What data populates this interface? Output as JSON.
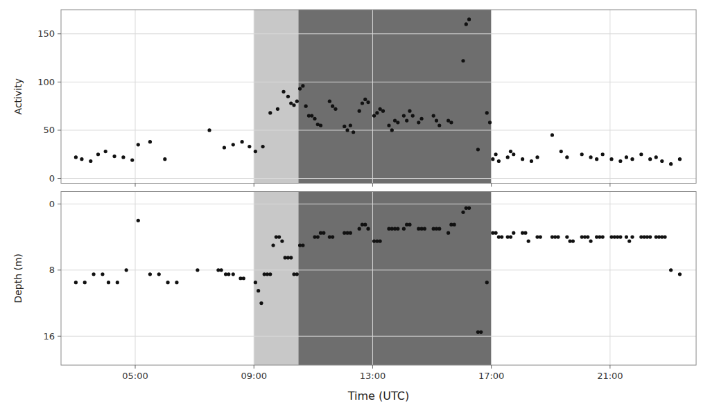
{
  "chart_data": [
    {
      "type": "scatter",
      "ylabel": "Activity",
      "xlim": [
        2.5,
        23.9
      ],
      "xticks": [
        5,
        9,
        13,
        17,
        21
      ],
      "ylim": [
        -5,
        175
      ],
      "yticks": [
        0,
        50,
        100,
        150
      ],
      "grid": true,
      "tick_labels": "y",
      "color": "#111111",
      "bands": [
        {
          "start": 9.0,
          "end": 10.5,
          "color": "#c8c8c8"
        },
        {
          "start": 10.5,
          "end": 17.0,
          "color": "#6e6e6e"
        }
      ],
      "x": [
        3.0,
        3.2,
        3.5,
        3.75,
        4.0,
        4.3,
        4.6,
        4.9,
        5.1,
        5.5,
        6.0,
        7.5,
        8.0,
        8.3,
        8.6,
        8.85,
        9.05,
        9.3,
        9.55,
        9.8,
        10.0,
        10.15,
        10.25,
        10.35,
        10.45,
        10.55,
        10.65,
        10.75,
        10.85,
        10.95,
        11.05,
        11.15,
        11.25,
        11.55,
        11.65,
        11.75,
        12.05,
        12.15,
        12.25,
        12.35,
        12.55,
        12.65,
        12.75,
        12.85,
        13.05,
        13.15,
        13.25,
        13.35,
        13.55,
        13.65,
        13.75,
        13.85,
        14.05,
        14.15,
        14.25,
        14.35,
        14.55,
        14.65,
        15.05,
        15.15,
        15.25,
        15.55,
        15.65,
        16.05,
        16.15,
        16.25,
        16.55,
        16.85,
        16.95,
        17.05,
        17.15,
        17.25,
        17.55,
        17.65,
        17.75,
        18.05,
        18.35,
        18.55,
        19.05,
        19.35,
        19.55,
        20.05,
        20.35,
        20.55,
        20.75,
        21.05,
        21.35,
        21.55,
        21.75,
        22.05,
        22.35,
        22.55,
        22.75,
        23.05,
        23.35
      ],
      "values": [
        22,
        20,
        18,
        25,
        28,
        23,
        22,
        19,
        35,
        38,
        20,
        50,
        32,
        35,
        38,
        33,
        28,
        33,
        68,
        72,
        90,
        85,
        78,
        76,
        80,
        93,
        96,
        75,
        65,
        65,
        62,
        56,
        55,
        80,
        75,
        72,
        54,
        50,
        55,
        48,
        70,
        78,
        82,
        79,
        65,
        68,
        72,
        70,
        55,
        50,
        60,
        58,
        65,
        60,
        70,
        65,
        58,
        62,
        65,
        60,
        55,
        60,
        58,
        122,
        160,
        165,
        30,
        68,
        58,
        20,
        25,
        18,
        22,
        28,
        25,
        20,
        18,
        22,
        45,
        28,
        22,
        25,
        22,
        20,
        25,
        20,
        18,
        22,
        20,
        25,
        20,
        22,
        18,
        15,
        20
      ]
    },
    {
      "type": "scatter",
      "xlabel": "Time (UTC)",
      "ylabel": "Depth (m)",
      "xlim": [
        2.5,
        23.9
      ],
      "xticks": [
        {
          "value": 5,
          "label": "05:00"
        },
        {
          "value": 9,
          "label": "09:00"
        },
        {
          "value": 13,
          "label": "13:00"
        },
        {
          "value": 17,
          "label": "17:00"
        },
        {
          "value": 21,
          "label": "21:00"
        }
      ],
      "ylim": [
        19.5,
        -1.5
      ],
      "yticks": [
        0,
        8,
        16
      ],
      "grid": true,
      "color": "#111111",
      "bands": [
        {
          "start": 9.0,
          "end": 10.5,
          "color": "#c8c8c8"
        },
        {
          "start": 10.5,
          "end": 17.0,
          "color": "#6e6e6e"
        }
      ],
      "x": [
        3.0,
        3.3,
        3.6,
        3.9,
        4.1,
        4.4,
        4.7,
        5.1,
        5.5,
        5.8,
        6.1,
        6.4,
        7.1,
        7.8,
        7.9,
        8.05,
        8.15,
        8.3,
        8.55,
        8.65,
        9.05,
        9.15,
        9.25,
        9.35,
        9.45,
        9.55,
        9.65,
        9.75,
        9.85,
        9.95,
        10.05,
        10.15,
        10.25,
        10.35,
        10.45,
        10.55,
        10.65,
        11.05,
        11.15,
        11.25,
        11.35,
        11.55,
        11.65,
        12.05,
        12.15,
        12.25,
        12.55,
        12.65,
        12.75,
        12.85,
        13.05,
        13.15,
        13.25,
        13.55,
        13.65,
        13.75,
        13.85,
        14.05,
        14.15,
        14.25,
        14.55,
        14.65,
        14.75,
        15.05,
        15.15,
        15.25,
        15.55,
        15.65,
        15.75,
        16.05,
        16.15,
        16.25,
        16.55,
        16.65,
        16.85,
        17.05,
        17.15,
        17.25,
        17.35,
        17.55,
        17.65,
        17.75,
        18.05,
        18.15,
        18.25,
        18.55,
        18.65,
        19.05,
        19.15,
        19.25,
        19.55,
        19.65,
        19.75,
        20.05,
        20.15,
        20.25,
        20.35,
        20.55,
        20.65,
        20.75,
        21.05,
        21.15,
        21.25,
        21.35,
        21.55,
        21.65,
        21.75,
        22.05,
        22.15,
        22.25,
        22.35,
        22.55,
        22.65,
        22.75,
        22.85,
        23.05,
        23.35
      ],
      "values": [
        9.5,
        9.5,
        8.5,
        8.5,
        9.5,
        9.5,
        8.0,
        2.0,
        8.5,
        8.5,
        9.5,
        9.5,
        8.0,
        8.0,
        8.0,
        8.5,
        8.5,
        8.5,
        9.0,
        9.0,
        9.5,
        10.5,
        12.0,
        8.5,
        8.5,
        8.5,
        5.0,
        4.0,
        4.0,
        4.5,
        6.5,
        6.5,
        6.5,
        8.5,
        8.5,
        5.0,
        5.0,
        4.0,
        4.0,
        3.5,
        3.5,
        4.0,
        4.0,
        3.5,
        3.5,
        3.5,
        3.0,
        2.5,
        2.5,
        3.0,
        4.5,
        4.5,
        4.5,
        3.0,
        3.0,
        3.0,
        3.0,
        3.0,
        2.5,
        2.5,
        3.0,
        3.0,
        3.0,
        3.0,
        3.0,
        3.0,
        3.5,
        2.5,
        2.5,
        1.0,
        0.5,
        0.5,
        15.5,
        15.5,
        9.5,
        3.5,
        3.5,
        4.0,
        4.0,
        4.0,
        4.0,
        3.5,
        3.5,
        3.5,
        4.5,
        4.0,
        4.0,
        4.0,
        4.0,
        4.0,
        4.0,
        4.5,
        4.5,
        4.0,
        4.0,
        4.0,
        4.5,
        4.0,
        4.0,
        4.0,
        4.0,
        4.0,
        4.0,
        4.0,
        4.0,
        4.5,
        4.0,
        4.0,
        4.0,
        4.0,
        4.0,
        4.0,
        4.0,
        4.0,
        4.0,
        8.0,
        8.5
      ]
    }
  ]
}
